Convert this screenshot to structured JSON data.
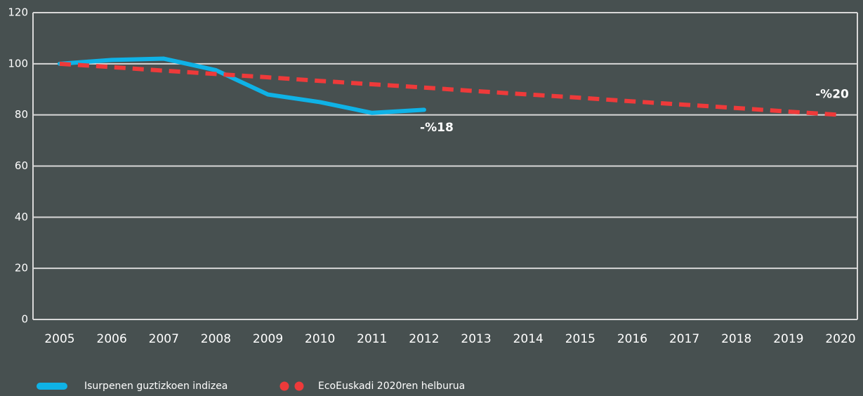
{
  "chart_data": {
    "type": "line",
    "categories": [
      "2005",
      "2006",
      "2007",
      "2008",
      "2009",
      "2010",
      "2011",
      "2012",
      "2013",
      "2014",
      "2015",
      "2016",
      "2017",
      "2018",
      "2019",
      "2020"
    ],
    "series": [
      {
        "name": "Isurpenen guztizkoen indizea",
        "color": "#0fb2e6",
        "dashed": false,
        "values": [
          100,
          101.5,
          102,
          97.5,
          88,
          85,
          80.8,
          82,
          null,
          null,
          null,
          null,
          null,
          null,
          null,
          null
        ]
      },
      {
        "name": "EcoEuskadi 2020ren helburua",
        "color": "#ee3a3a",
        "dashed": true,
        "values": [
          100,
          98.7,
          97.3,
          96,
          94.7,
          93.3,
          92,
          90.7,
          89.3,
          88,
          86.7,
          85.3,
          84,
          82.7,
          81.3,
          80
        ]
      }
    ],
    "annotations": [
      {
        "text": "-%18",
        "x": "2012",
        "y": 75
      },
      {
        "text": "-%20",
        "x": "2020",
        "y": 88
      }
    ],
    "ylim": [
      0,
      120
    ],
    "yticks": [
      0,
      20,
      40,
      60,
      80,
      100,
      120
    ],
    "grid": true,
    "legend": "bottom-left"
  }
}
